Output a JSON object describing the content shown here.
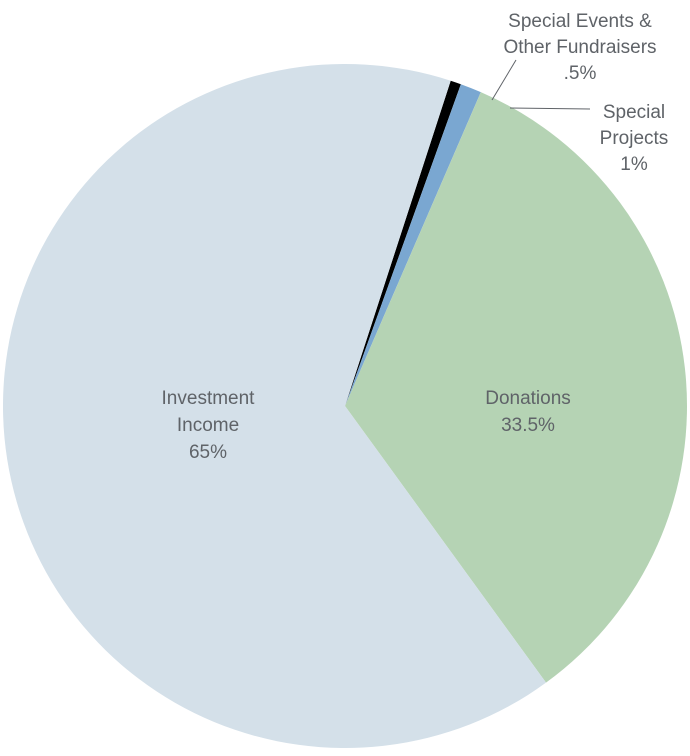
{
  "chart_data": {
    "type": "pie",
    "start_angle_deg": 18,
    "direction": "clockwise",
    "slices": [
      {
        "name": "Special Events & Other Fundraisers",
        "value": 0.5,
        "value_label": ".5%",
        "color": "#000000",
        "label_lines": [
          "Special Events &",
          "Other Fundraisers"
        ]
      },
      {
        "name": "Special Projects",
        "value": 1,
        "value_label": "1%",
        "color": "#7aa7d1",
        "label_lines": [
          "Special",
          "Projects"
        ]
      },
      {
        "name": "Donations",
        "value": 33.5,
        "value_label": "33.5%",
        "color": "#b5d3b4",
        "label_lines": [
          "Donations"
        ]
      },
      {
        "name": "Investment Income",
        "value": 65,
        "value_label": "65%",
        "color": "#d4e0e9",
        "label_lines": [
          "Investment",
          "Income"
        ]
      }
    ]
  }
}
